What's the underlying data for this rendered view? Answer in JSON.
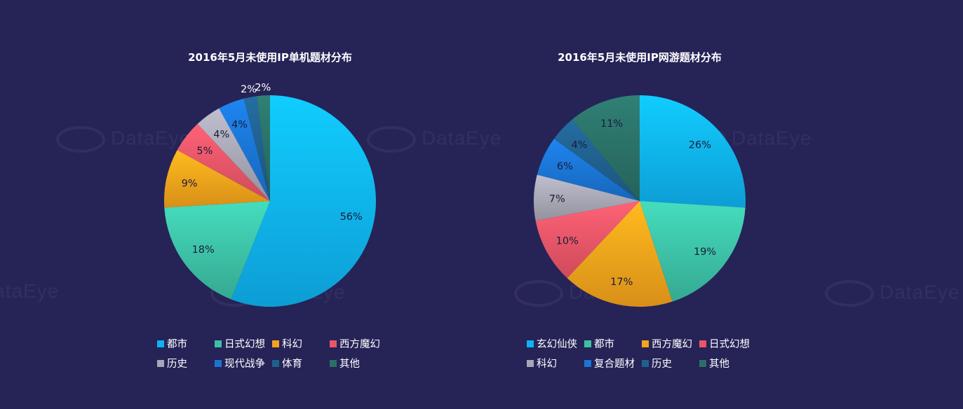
{
  "watermark": "DataEye",
  "chart_data": [
    {
      "type": "pie",
      "title": "2016年5月未使用IP单机题材分布",
      "categories": [
        "都市",
        "日式幻想",
        "科幻",
        "西方魔幻",
        "历史",
        "现代战争",
        "体育",
        "其他"
      ],
      "values": [
        56,
        18,
        9,
        5,
        4,
        4,
        2,
        2
      ],
      "labels": [
        "56%",
        "18%",
        "9%",
        "5%",
        "4%",
        "4%",
        "2%",
        "2%"
      ],
      "colors": [
        "#0fb2f2",
        "#3cc0a5",
        "#f6a31b",
        "#ea5567",
        "#a7a6b4",
        "#1a74d2",
        "#1f5f8d",
        "#2a6f66"
      ],
      "legend_position": "bottom"
    },
    {
      "type": "pie",
      "title": "2016年5月未使用IP网游题材分布",
      "categories": [
        "玄幻仙侠",
        "都市",
        "西方魔幻",
        "日式幻想",
        "科幻",
        "复合题材",
        "历史",
        "其他"
      ],
      "values": [
        26,
        19,
        17,
        10,
        7,
        6,
        4,
        11
      ],
      "labels": [
        "26%",
        "19%",
        "17%",
        "10%",
        "7%",
        "6%",
        "4%",
        "11%"
      ],
      "colors": [
        "#0fb2f2",
        "#3cc0a5",
        "#f6a31b",
        "#ea5567",
        "#a7a6b4",
        "#1a74d2",
        "#1f5f8d",
        "#2a6f66"
      ],
      "legend_position": "bottom"
    }
  ]
}
